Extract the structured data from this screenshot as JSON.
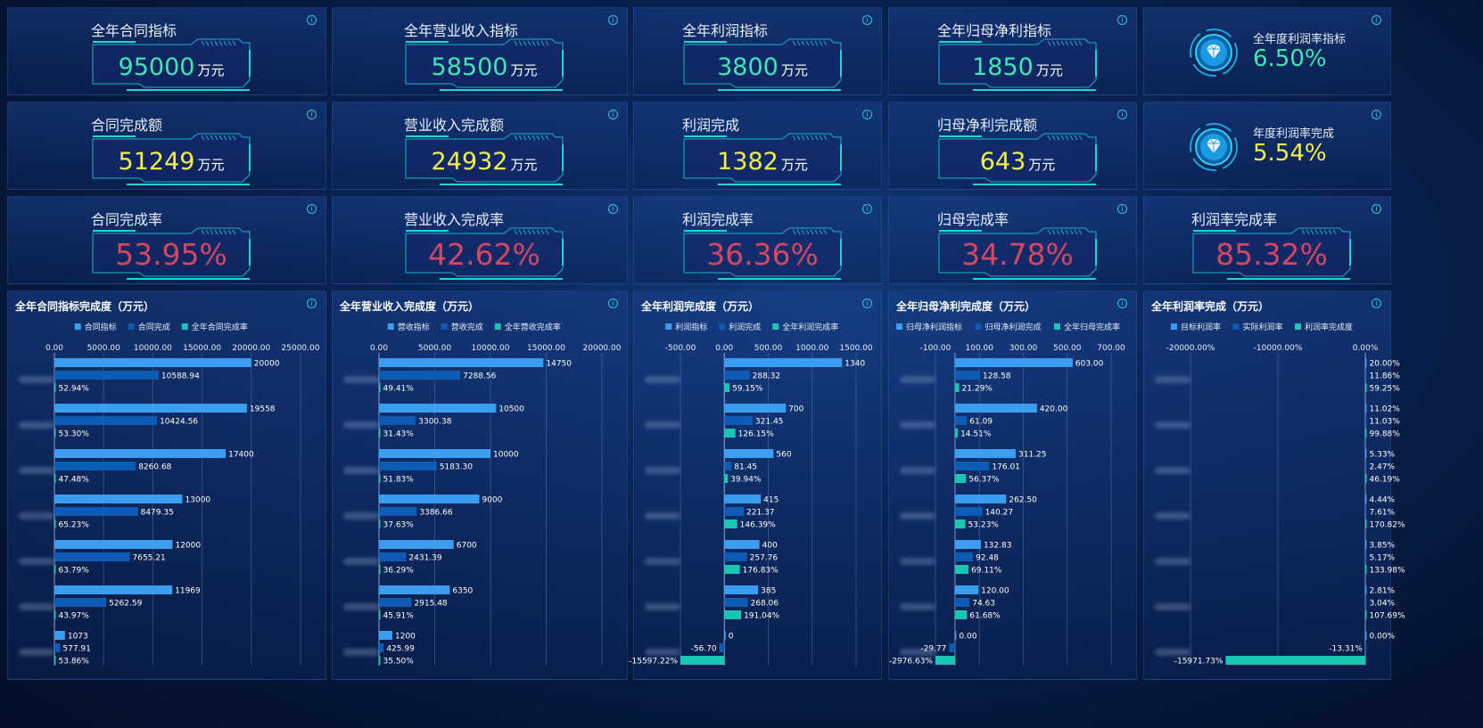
{
  "units": "万元",
  "kpi_rows": [
    [
      {
        "label": "全年合同指标",
        "value": "95000",
        "unit": "万元",
        "color": "green"
      },
      {
        "label": "全年营业收入指标",
        "value": "58500",
        "unit": "万元",
        "color": "green"
      },
      {
        "label": "全年利润指标",
        "value": "3800",
        "unit": "万元",
        "color": "green"
      },
      {
        "label": "全年归母净利指标",
        "value": "1850",
        "unit": "万元",
        "color": "green"
      },
      {
        "label": "全年度利润率指标",
        "value": "6.50%",
        "color": "green",
        "gem": true
      }
    ],
    [
      {
        "label": "合同完成额",
        "value": "51249",
        "unit": "万元",
        "color": "yellow"
      },
      {
        "label": "营业收入完成额",
        "value": "24932",
        "unit": "万元",
        "color": "yellow"
      },
      {
        "label": "利润完成",
        "value": "1382",
        "unit": "万元",
        "color": "yellow"
      },
      {
        "label": "归母净利完成额",
        "value": "643",
        "unit": "万元",
        "color": "yellow"
      },
      {
        "label": "年度利润率完成",
        "value": "5.54%",
        "color": "yellow",
        "gem": true
      }
    ],
    [
      {
        "label": "合同完成率",
        "value": "53.95%",
        "color": "red"
      },
      {
        "label": "营业收入完成率",
        "value": "42.62%",
        "color": "red"
      },
      {
        "label": "利润完成率",
        "value": "36.36%",
        "color": "red"
      },
      {
        "label": "归母完成率",
        "value": "34.78%",
        "color": "red"
      },
      {
        "label": "利润率完成率",
        "value": "85.32%",
        "color": "red"
      }
    ]
  ],
  "colors": {
    "series1": "#3a9df0",
    "series2": "#0d5bb5",
    "series3": "#19c6b4",
    "green": "#3fe6b4",
    "yellow": "#f2f048",
    "red": "#d4475f",
    "accent": "#31c4d8"
  },
  "chart_data": [
    {
      "type": "bar",
      "title": "全年合同指标完成度（万元）",
      "legend": [
        "合同指标",
        "合同完成",
        "全年合同完成率"
      ],
      "xlim": [
        0,
        25000
      ],
      "ticks": [
        "0.00",
        "5000.00",
        "10000.00",
        "15000.00",
        "20000.00",
        "25000.00"
      ],
      "series": [
        {
          "name": "合同指标",
          "values": [
            20000,
            19558,
            17400,
            13000,
            12000,
            11969,
            1073
          ],
          "labels": [
            "20000",
            "19558",
            "17400",
            "13000",
            "12000",
            "11969",
            "1073"
          ]
        },
        {
          "name": "合同完成",
          "values": [
            10588.94,
            10424.56,
            8260.68,
            8479.35,
            7655.21,
            5262.59,
            577.91
          ],
          "labels": [
            "10588.94",
            "10424.56",
            "8260.68",
            "8479.35",
            "7655.21",
            "5262.59",
            "577.91"
          ]
        },
        {
          "name": "全年合同完成率",
          "values": [
            52.94,
            53.3,
            47.48,
            65.23,
            63.79,
            43.97,
            53.86
          ],
          "labels": [
            "52.94%",
            "53.30%",
            "47.48%",
            "65.23%",
            "63.79%",
            "43.97%",
            "53.86%"
          ]
        }
      ]
    },
    {
      "type": "bar",
      "title": "全年营业收入完成度（万元）",
      "legend": [
        "营收指标",
        "营收完成",
        "全年营收完成率"
      ],
      "xlim": [
        0,
        20000
      ],
      "ticks": [
        "0.00",
        "5000.00",
        "10000.00",
        "15000.00",
        "20000.00"
      ],
      "series": [
        {
          "name": "营收指标",
          "values": [
            14750,
            10500,
            10000,
            9000,
            6700,
            6350,
            1200
          ],
          "labels": [
            "14750",
            "10500",
            "10000",
            "9000",
            "6700",
            "6350",
            "1200"
          ]
        },
        {
          "name": "营收完成",
          "values": [
            7288.56,
            3300.38,
            5183.3,
            3386.66,
            2431.39,
            2915.48,
            425.99
          ],
          "labels": [
            "7288.56",
            "3300.38",
            "5183.30",
            "3386.66",
            "2431.39",
            "2915.48",
            "425.99"
          ]
        },
        {
          "name": "全年营收完成率",
          "values": [
            49.41,
            31.43,
            51.83,
            37.63,
            36.29,
            45.91,
            35.5
          ],
          "labels": [
            "49.41%",
            "31.43%",
            "51.83%",
            "37.63%",
            "36.29%",
            "45.91%",
            "35.50%"
          ]
        }
      ]
    },
    {
      "type": "bar",
      "title": "全年利润完成度（万元）",
      "legend": [
        "利润指标",
        "利润完成",
        "全年利润完成率"
      ],
      "xlim": [
        -500,
        1500
      ],
      "ticks": [
        "-500.00",
        "0.00",
        "500.00",
        "1000.00",
        "1500.00"
      ],
      "series": [
        {
          "name": "利润指标",
          "values": [
            1340,
            700,
            560,
            415,
            400,
            385,
            0
          ],
          "labels": [
            "1340",
            "700",
            "560",
            "415",
            "400",
            "385",
            "0"
          ]
        },
        {
          "name": "利润完成",
          "values": [
            288.32,
            321.45,
            81.45,
            221.37,
            257.76,
            268.06,
            -56.7
          ],
          "labels": [
            "288.32",
            "321.45",
            "81.45",
            "221.37",
            "257.76",
            "268.06",
            "-56.70"
          ]
        },
        {
          "name": "全年利润完成率",
          "values": [
            59.15,
            126.15,
            39.94,
            146.39,
            176.83,
            191.04,
            -15597.22
          ],
          "labels": [
            "59.15%",
            "126.15%",
            "39.94%",
            "146.39%",
            "176.83%",
            "191.04%",
            "-15597.22%"
          ]
        }
      ]
    },
    {
      "type": "bar",
      "title": "全年归母净利完成度（万元）",
      "legend": [
        "归母净利润指标",
        "归母净利润完成",
        "全年归母完成率"
      ],
      "xlim": [
        -100,
        800
      ],
      "ticks": [
        "-100.00",
        "100.00",
        "300.00",
        "500.00",
        "700.00"
      ],
      "series": [
        {
          "name": "归母净利润指标",
          "values": [
            603.0,
            420.0,
            311.25,
            262.5,
            132.83,
            120.0,
            0.0
          ],
          "labels": [
            "603.00",
            "420.00",
            "311.25",
            "262.50",
            "132.83",
            "120.00",
            "0.00"
          ]
        },
        {
          "name": "归母净利润完成",
          "values": [
            128.58,
            61.09,
            176.01,
            140.27,
            92.48,
            74.63,
            -29.77
          ],
          "labels": [
            "128.58",
            "61.09",
            "176.01",
            "140.27",
            "92.48",
            "74.63",
            "-29.77"
          ]
        },
        {
          "name": "全年归母完成率",
          "values": [
            21.29,
            14.51,
            56.37,
            53.23,
            69.11,
            61.68,
            -2976.63
          ],
          "labels": [
            "21.29%",
            "14.51%",
            "56.37%",
            "53.23%",
            "69.11%",
            "61.68%",
            "-2976.63%"
          ]
        }
      ]
    },
    {
      "type": "bar",
      "title": "全年利润率完成（万元）",
      "legend": [
        "目标利润率",
        "实际利润率",
        "利润率完成度"
      ],
      "xlim": [
        -20000,
        0
      ],
      "ticks": [
        "-20000.00%",
        "-10000.00%",
        "0.00%"
      ],
      "series": [
        {
          "name": "目标利润率",
          "values": [
            20.0,
            11.02,
            5.33,
            4.44,
            3.85,
            2.81,
            0.0
          ],
          "labels": [
            "20.00%",
            "11.02%",
            "5.33%",
            "4.44%",
            "3.85%",
            "2.81%",
            "0.00%"
          ]
        },
        {
          "name": "实际利润率",
          "values": [
            11.86,
            11.03,
            2.47,
            7.61,
            5.17,
            3.04,
            -13.31
          ],
          "labels": [
            "11.86%",
            "11.03%",
            "2.47%",
            "7.61%",
            "5.17%",
            "3.04%",
            "-13.31%"
          ]
        },
        {
          "name": "利润率完成度",
          "values": [
            59.25,
            99.88,
            46.19,
            170.82,
            133.98,
            107.69,
            -15971.73
          ],
          "labels": [
            "59.25%",
            "99.88%",
            "46.19%",
            "170.82%",
            "133.98%",
            "107.69%",
            "-15971.73%"
          ]
        }
      ]
    }
  ]
}
